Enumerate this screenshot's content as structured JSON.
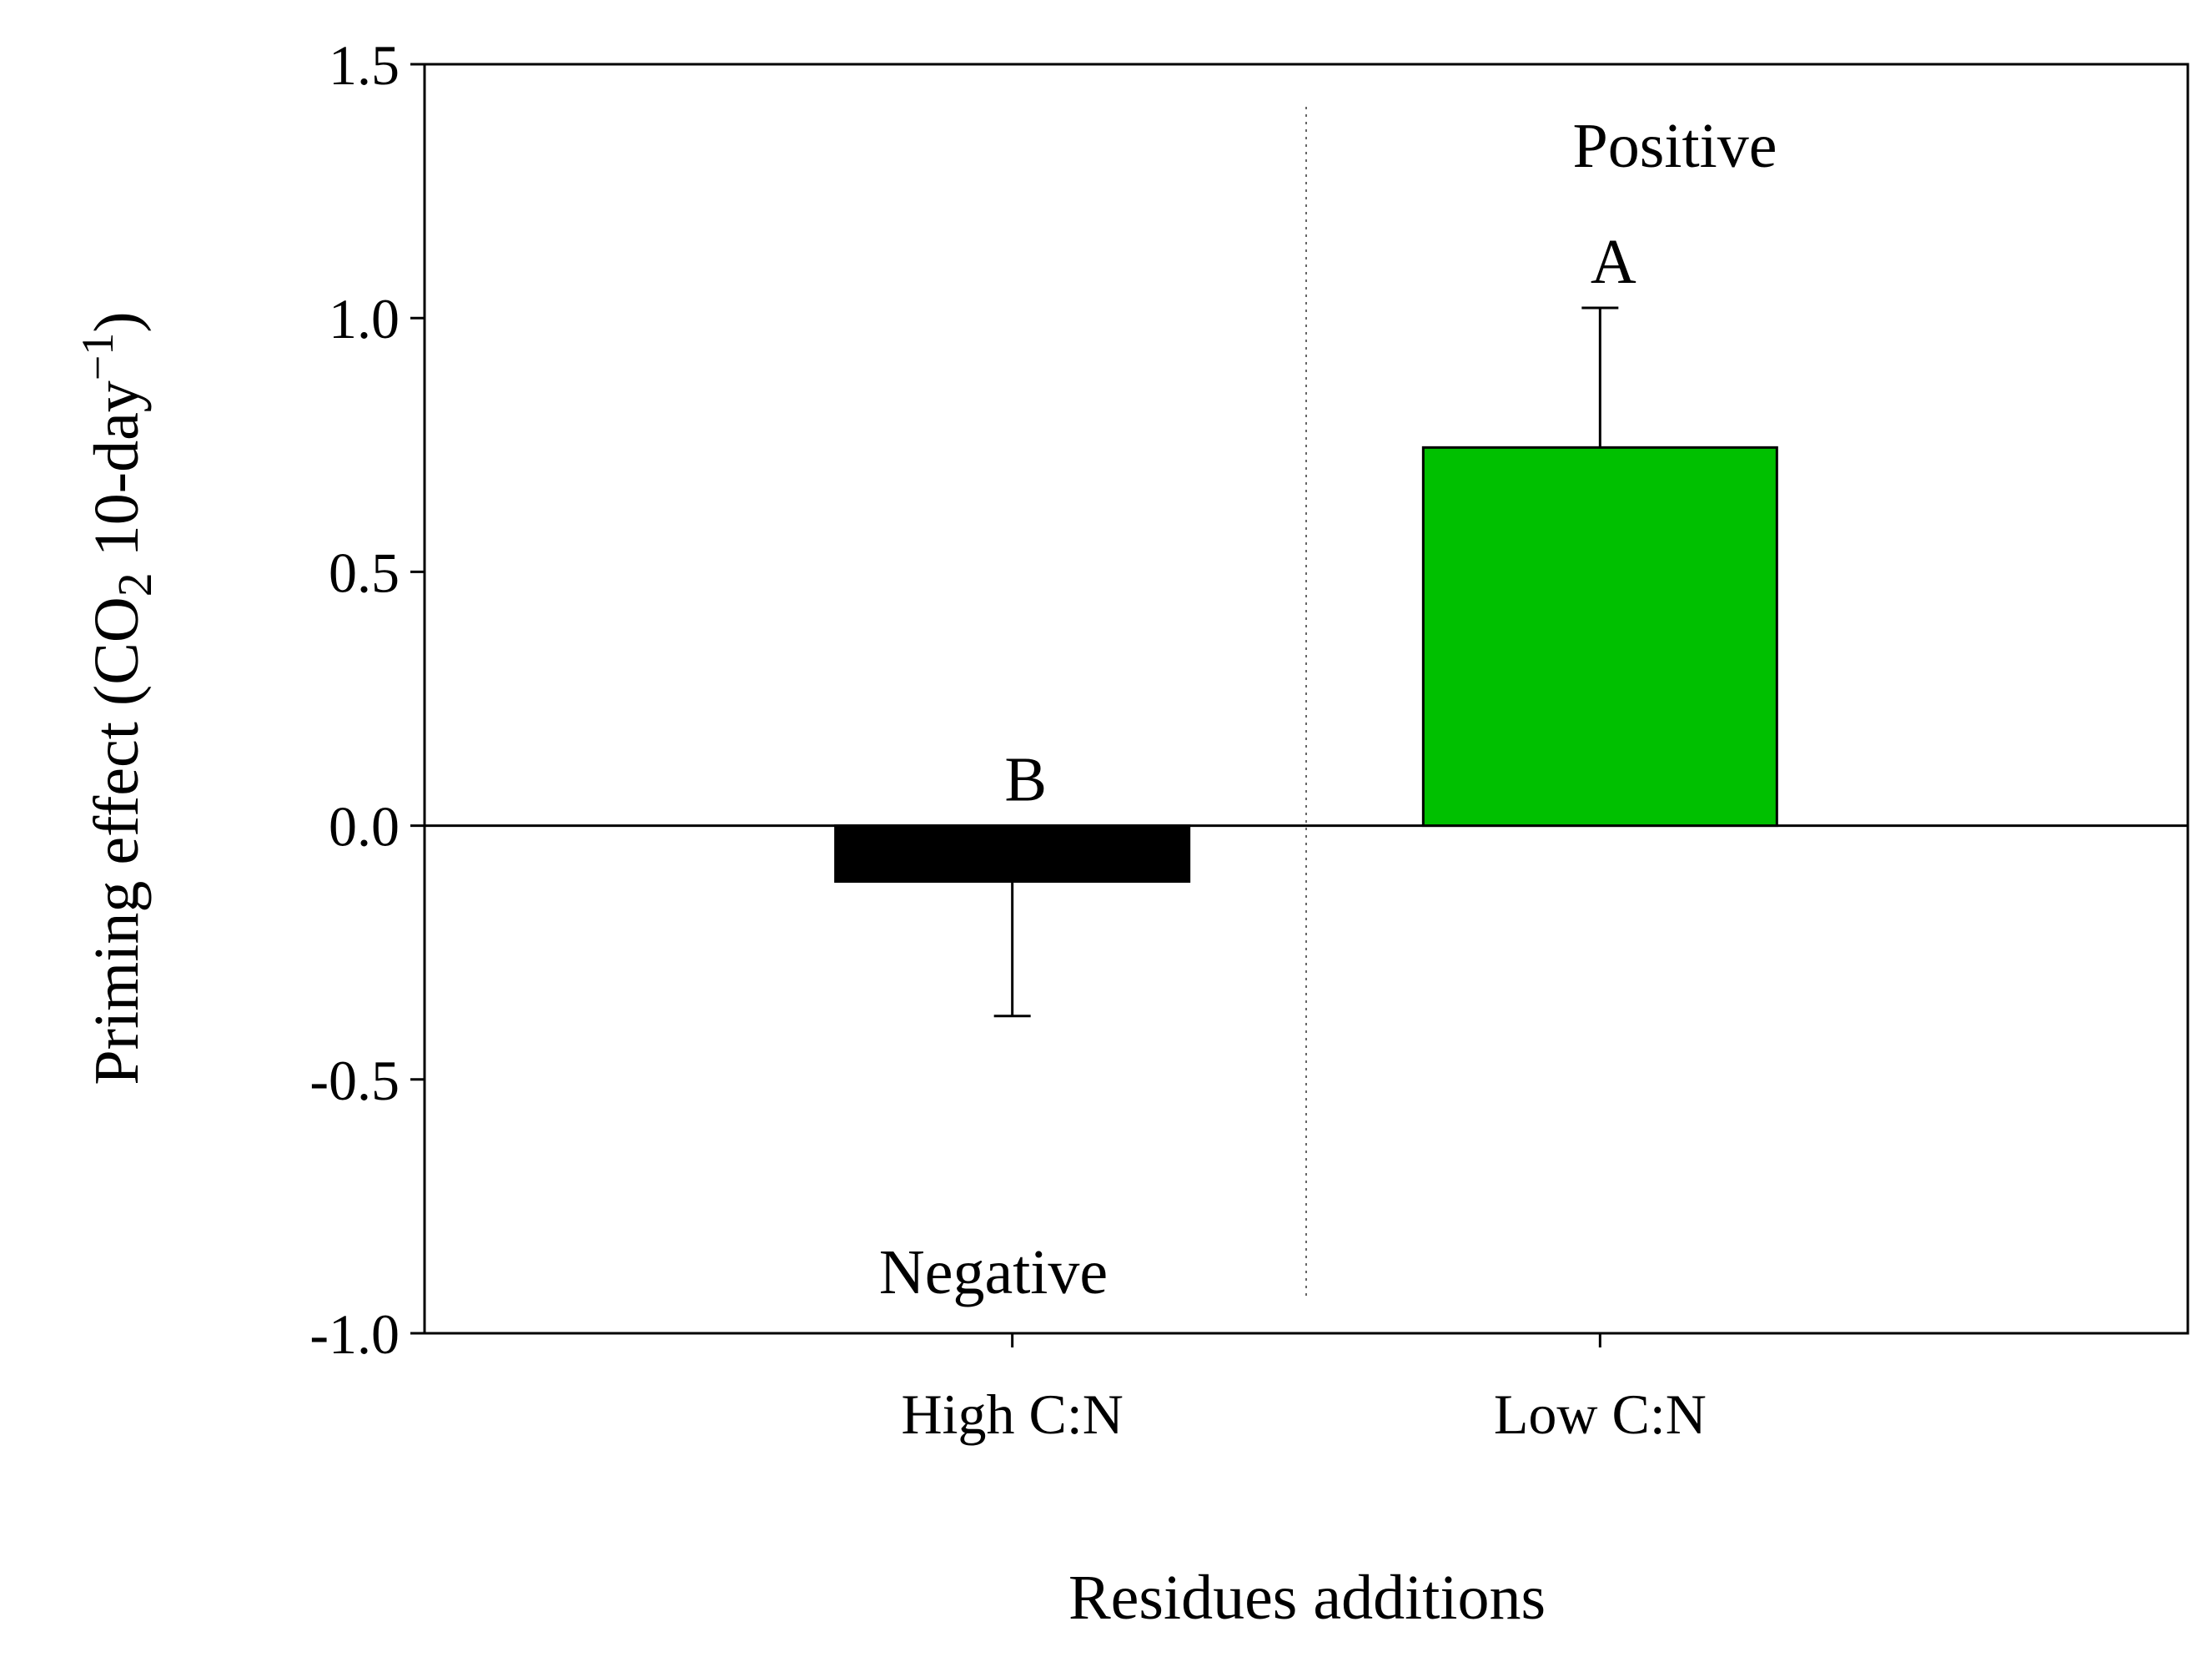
{
  "chart_data": {
    "type": "bar",
    "categories": [
      "High C:N",
      "Low C:N"
    ],
    "values": [
      -0.11,
      0.745
    ],
    "errors": [
      0.265,
      0.275
    ],
    "colors": [
      "#000000",
      "#00c000"
    ],
    "letters": [
      "B",
      "A"
    ],
    "annotations": [
      "Negative",
      "Positive"
    ],
    "x_label": "Residues additions",
    "y_label_parts": [
      "Priming effect (CO",
      "2",
      " 10-day",
      "−1",
      ")"
    ],
    "ylim": [
      -1.0,
      1.5
    ],
    "yticks": [
      {
        "value": -1.0,
        "label": "-1.0"
      },
      -0.5,
      {
        "value": 0,
        "label": "0.0"
      },
      0.5,
      {
        "value": 1.0,
        "label": "1.0"
      },
      1.5
    ],
    "grid": false
  }
}
